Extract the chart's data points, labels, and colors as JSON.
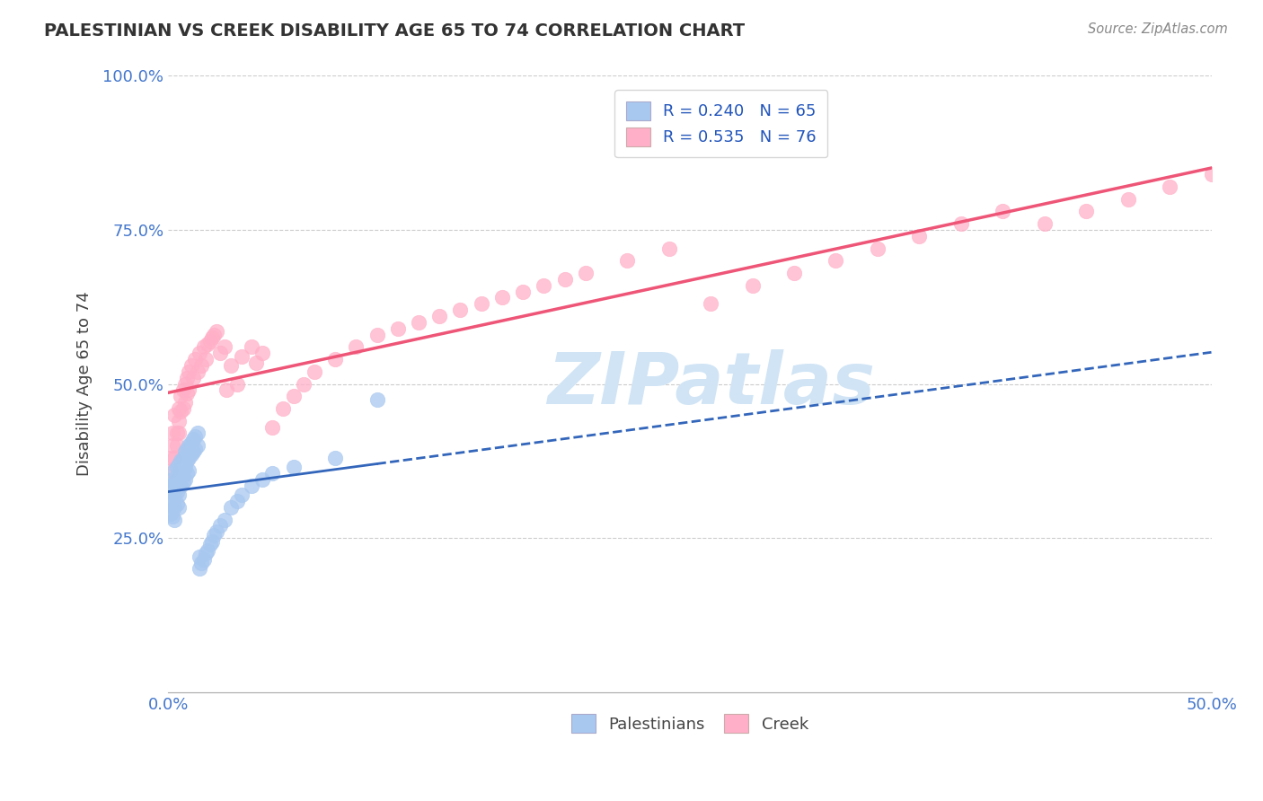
{
  "title": "PALESTINIAN VS CREEK DISABILITY AGE 65 TO 74 CORRELATION CHART",
  "source_text": "Source: ZipAtlas.com",
  "ylabel": "Disability Age 65 to 74",
  "xlim": [
    0.0,
    0.5
  ],
  "ylim": [
    0.0,
    1.0
  ],
  "xticks": [
    0.0,
    0.05,
    0.1,
    0.15,
    0.2,
    0.25,
    0.3,
    0.35,
    0.4,
    0.45,
    0.5
  ],
  "xticklabels": [
    "0.0%",
    "",
    "",
    "",
    "",
    "",
    "",
    "",
    "",
    "",
    "50.0%"
  ],
  "yticks": [
    0.0,
    0.25,
    0.5,
    0.75,
    1.0
  ],
  "yticklabels": [
    "",
    "25.0%",
    "50.0%",
    "75.0%",
    "100.0%"
  ],
  "palestinian_R": 0.24,
  "palestinian_N": 65,
  "creek_R": 0.535,
  "creek_N": 76,
  "palestinian_color": "#a8c8f0",
  "creek_color": "#ffb0c8",
  "palestinian_line_color": "#3366bb",
  "creek_line_color": "#ee5577",
  "background_color": "#ffffff",
  "grid_color": "#cccccc",
  "watermark_text": "ZIPatlas",
  "watermark_color": "#d0e4f5",
  "palestinian_x": [
    0.001,
    0.001,
    0.001,
    0.002,
    0.002,
    0.002,
    0.002,
    0.003,
    0.003,
    0.003,
    0.003,
    0.003,
    0.004,
    0.004,
    0.004,
    0.004,
    0.005,
    0.005,
    0.005,
    0.005,
    0.005,
    0.006,
    0.006,
    0.006,
    0.007,
    0.007,
    0.007,
    0.008,
    0.008,
    0.008,
    0.009,
    0.009,
    0.009,
    0.01,
    0.01,
    0.01,
    0.011,
    0.011,
    0.012,
    0.012,
    0.013,
    0.013,
    0.014,
    0.014,
    0.015,
    0.015,
    0.016,
    0.017,
    0.018,
    0.019,
    0.02,
    0.021,
    0.022,
    0.023,
    0.025,
    0.027,
    0.03,
    0.033,
    0.035,
    0.04,
    0.045,
    0.05,
    0.06,
    0.08,
    0.1
  ],
  "palestinian_y": [
    0.335,
    0.31,
    0.29,
    0.345,
    0.325,
    0.305,
    0.285,
    0.36,
    0.34,
    0.32,
    0.3,
    0.28,
    0.365,
    0.345,
    0.325,
    0.305,
    0.37,
    0.355,
    0.34,
    0.32,
    0.3,
    0.375,
    0.355,
    0.335,
    0.38,
    0.36,
    0.34,
    0.39,
    0.365,
    0.345,
    0.395,
    0.375,
    0.355,
    0.4,
    0.38,
    0.36,
    0.405,
    0.385,
    0.41,
    0.39,
    0.415,
    0.395,
    0.42,
    0.4,
    0.2,
    0.22,
    0.21,
    0.215,
    0.225,
    0.23,
    0.24,
    0.245,
    0.255,
    0.26,
    0.27,
    0.28,
    0.3,
    0.31,
    0.32,
    0.335,
    0.345,
    0.355,
    0.365,
    0.38,
    0.475
  ],
  "creek_x": [
    0.001,
    0.001,
    0.002,
    0.002,
    0.003,
    0.003,
    0.004,
    0.004,
    0.005,
    0.005,
    0.005,
    0.006,
    0.006,
    0.007,
    0.007,
    0.008,
    0.008,
    0.009,
    0.009,
    0.01,
    0.01,
    0.011,
    0.012,
    0.013,
    0.014,
    0.015,
    0.016,
    0.017,
    0.018,
    0.019,
    0.02,
    0.021,
    0.022,
    0.023,
    0.025,
    0.027,
    0.028,
    0.03,
    0.033,
    0.035,
    0.04,
    0.042,
    0.045,
    0.05,
    0.055,
    0.06,
    0.065,
    0.07,
    0.08,
    0.09,
    0.1,
    0.11,
    0.12,
    0.13,
    0.14,
    0.15,
    0.16,
    0.17,
    0.18,
    0.19,
    0.2,
    0.22,
    0.24,
    0.26,
    0.28,
    0.3,
    0.32,
    0.34,
    0.36,
    0.38,
    0.4,
    0.42,
    0.44,
    0.46,
    0.48,
    0.5
  ],
  "creek_y": [
    0.38,
    0.36,
    0.42,
    0.4,
    0.45,
    0.38,
    0.42,
    0.4,
    0.46,
    0.44,
    0.42,
    0.48,
    0.455,
    0.49,
    0.46,
    0.5,
    0.47,
    0.51,
    0.485,
    0.52,
    0.49,
    0.53,
    0.51,
    0.54,
    0.52,
    0.55,
    0.53,
    0.56,
    0.54,
    0.565,
    0.57,
    0.575,
    0.58,
    0.585,
    0.55,
    0.56,
    0.49,
    0.53,
    0.5,
    0.545,
    0.56,
    0.535,
    0.55,
    0.43,
    0.46,
    0.48,
    0.5,
    0.52,
    0.54,
    0.56,
    0.58,
    0.59,
    0.6,
    0.61,
    0.62,
    0.63,
    0.64,
    0.65,
    0.66,
    0.67,
    0.68,
    0.7,
    0.72,
    0.63,
    0.66,
    0.68,
    0.7,
    0.72,
    0.74,
    0.76,
    0.78,
    0.76,
    0.78,
    0.8,
    0.82,
    0.84
  ]
}
